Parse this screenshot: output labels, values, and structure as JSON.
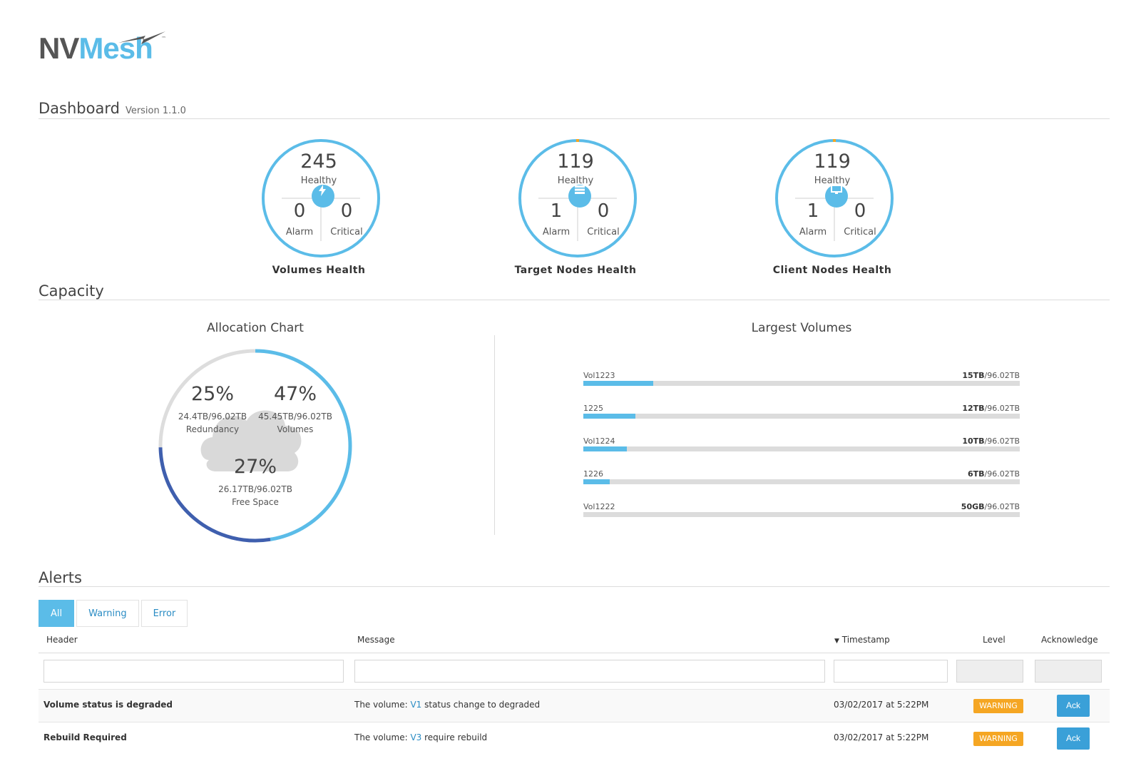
{
  "logo": {
    "part1": "NV",
    "part2": "Mesh",
    "tm": "™"
  },
  "dashboard": {
    "title": "Dashboard",
    "version": "Version 1.1.0"
  },
  "health": [
    {
      "healthy": "245",
      "healthy_label": "Healthy",
      "alarm": "0",
      "alarm_label": "Alarm",
      "critical": "0",
      "critical_label": "Critical",
      "label": "Volumes Health",
      "icon": "lightning-icon"
    },
    {
      "healthy": "119",
      "healthy_label": "Healthy",
      "alarm": "1",
      "alarm_label": "Alarm",
      "critical": "0",
      "critical_label": "Critical",
      "label": "Target Nodes Health",
      "icon": "server-icon"
    },
    {
      "healthy": "119",
      "healthy_label": "Healthy",
      "alarm": "1",
      "alarm_label": "Alarm",
      "critical": "0",
      "critical_label": "Critical",
      "label": "Client Nodes Health",
      "icon": "monitor-icon"
    }
  ],
  "capacity": {
    "title": "Capacity",
    "allocation": {
      "title": "Allocation Chart",
      "redundancy": {
        "pct": "25%",
        "size": "24.4TB/96.02TB",
        "label": "Redundancy",
        "value": 25
      },
      "volumes": {
        "pct": "47%",
        "size": "45.45TB/96.02TB",
        "label": "Volumes",
        "value": 47
      },
      "free": {
        "pct": "27%",
        "size": "26.17TB/96.02TB",
        "label": "Free Space",
        "value": 27
      }
    },
    "largest": {
      "title": "Largest Volumes",
      "items": [
        {
          "name": "Vol1223",
          "used": "15TB",
          "total": "/96.02TB",
          "fraction": 0.16
        },
        {
          "name": "1225",
          "used": "12TB",
          "total": "/96.02TB",
          "fraction": 0.12
        },
        {
          "name": "Vol1224",
          "used": "10TB",
          "total": "/96.02TB",
          "fraction": 0.1
        },
        {
          "name": "1226",
          "used": "6TB",
          "total": "/96.02TB",
          "fraction": 0.06
        },
        {
          "name": "Vol1222",
          "used": "50GB",
          "total": "/96.02TB",
          "fraction": 0.0
        }
      ]
    }
  },
  "alerts": {
    "title": "Alerts",
    "tabs": [
      "All",
      "Warning",
      "Error"
    ],
    "columns": {
      "header": "Header",
      "message": "Message",
      "timestamp": "Timestamp",
      "level": "Level",
      "acknowledge": "Acknowledge"
    },
    "sort_icon": "sort-down-icon",
    "rows": [
      {
        "header": "Volume status is degraded",
        "msg_prefix": "The volume: ",
        "msg_link": "V1",
        "msg_suffix": " status change to degraded",
        "timestamp": "03/02/2017 at 5:22PM",
        "level": "WARNING",
        "ack": "Ack"
      },
      {
        "header": "Rebuild Required",
        "msg_prefix": "The volume: ",
        "msg_link": "V3",
        "msg_suffix": " require rebuild",
        "timestamp": "03/02/2017 at 5:22PM",
        "level": "WARNING",
        "ack": "Ack"
      }
    ]
  },
  "colors": {
    "accent": "#5bbce8",
    "dark_accent": "#3f5fae",
    "warning": "#f5a623",
    "ring_grey": "#dddddd"
  }
}
